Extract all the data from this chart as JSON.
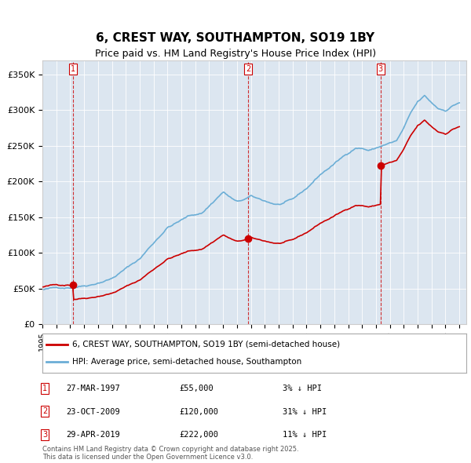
{
  "title": "6, CREST WAY, SOUTHAMPTON, SO19 1BY",
  "subtitle": "Price paid vs. HM Land Registry's House Price Index (HPI)",
  "title_fontsize": 11,
  "subtitle_fontsize": 9,
  "bg_color": "#dce6f0",
  "plot_bg_color": "#dce6f0",
  "ylim": [
    0,
    370000
  ],
  "yticks": [
    0,
    50000,
    100000,
    150000,
    200000,
    250000,
    300000,
    350000
  ],
  "ytick_labels": [
    "£0",
    "£50K",
    "£100K",
    "£150K",
    "£200K",
    "£250K",
    "£300K",
    "£350K"
  ],
  "sale1_date": 1997.23,
  "sale1_price": 55000,
  "sale1_label": "1",
  "sale2_date": 2009.81,
  "sale2_price": 120000,
  "sale2_label": "2",
  "sale3_date": 2019.32,
  "sale3_price": 222000,
  "sale3_label": "3",
  "legend_line1": "6, CREST WAY, SOUTHAMPTON, SO19 1BY (semi-detached house)",
  "legend_line2": "HPI: Average price, semi-detached house, Southampton",
  "table_entries": [
    {
      "num": "1",
      "date": "27-MAR-1997",
      "price": "£55,000",
      "hpi": "3% ↓ HPI"
    },
    {
      "num": "2",
      "date": "23-OCT-2009",
      "price": "£120,000",
      "hpi": "31% ↓ HPI"
    },
    {
      "num": "3",
      "date": "29-APR-2019",
      "price": "£222,000",
      "hpi": "11% ↓ HPI"
    }
  ],
  "footer": "Contains HM Land Registry data © Crown copyright and database right 2025.\nThis data is licensed under the Open Government Licence v3.0.",
  "hpi_color": "#6baed6",
  "price_color": "#cc0000",
  "vline_color": "#cc0000",
  "grid_color": "#ffffff",
  "marker_color": "#cc0000"
}
